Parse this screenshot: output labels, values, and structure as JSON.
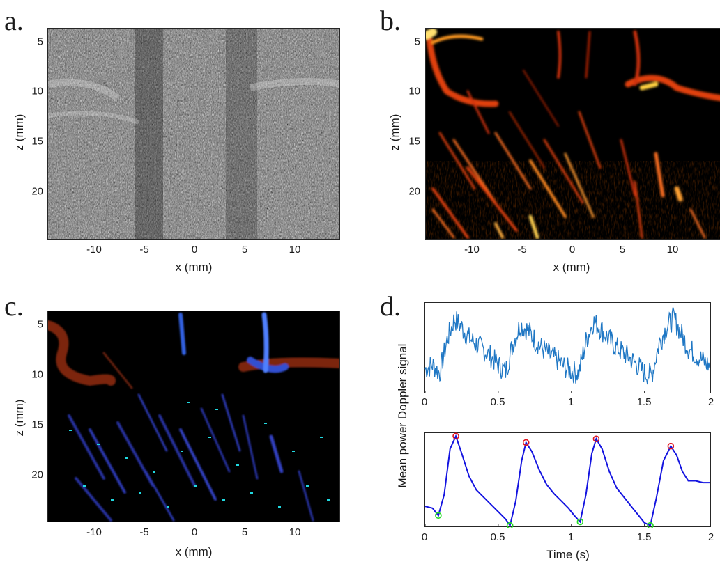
{
  "panels": {
    "a": {
      "letter": "a.",
      "xlabel": "x (mm)",
      "ylabel": "z (mm)",
      "xticks": [
        "-10",
        "-5",
        "0",
        "5",
        "10"
      ],
      "yticks": [
        "5",
        "10",
        "15",
        "20"
      ]
    },
    "b": {
      "letter": "b.",
      "xlabel": "x (mm)",
      "ylabel": "z (mm)",
      "xticks": [
        "-10",
        "-5",
        "0",
        "5",
        "10"
      ],
      "yticks": [
        "5",
        "10",
        "15",
        "20"
      ]
    },
    "c": {
      "letter": "c.",
      "xlabel": "x (mm)",
      "ylabel": "z (mm)",
      "xticks": [
        "-10",
        "-5",
        "0",
        "5",
        "10"
      ],
      "yticks": [
        "5",
        "10",
        "15",
        "20"
      ]
    },
    "d": {
      "letter": "d.",
      "ylabel": "Mean power Doppler signal",
      "xlabel": "Time (s)",
      "xticks": [
        "0",
        "0.5",
        "1",
        "1.5",
        "2"
      ]
    }
  },
  "colors": {
    "raw_signal": "#1f77c4",
    "smooth_signal": "#1414e0",
    "peak_marker": "#e0141e",
    "trough_marker": "#22dd22",
    "axis": "#262626"
  },
  "chart_data": [
    {
      "type": "line",
      "panel": "d-top",
      "xlim": [
        0,
        1.95
      ],
      "ylim": [
        0,
        1
      ],
      "series": [
        {
          "x": [
            0.0,
            0.05,
            0.1,
            0.15,
            0.2,
            0.25,
            0.3,
            0.35,
            0.4,
            0.45,
            0.5,
            0.55,
            0.6,
            0.65,
            0.7,
            0.75,
            0.8,
            0.85,
            0.9,
            0.95,
            1.0,
            1.05,
            1.1,
            1.15,
            1.2,
            1.25,
            1.3,
            1.35,
            1.4,
            1.45,
            1.5,
            1.55,
            1.6,
            1.65,
            1.7,
            1.75,
            1.8,
            1.85,
            1.9,
            1.95
          ],
          "y": [
            0.25,
            0.3,
            0.2,
            0.6,
            0.85,
            0.75,
            0.62,
            0.55,
            0.48,
            0.4,
            0.3,
            0.22,
            0.55,
            0.78,
            0.72,
            0.6,
            0.5,
            0.42,
            0.36,
            0.28,
            0.22,
            0.2,
            0.58,
            0.82,
            0.74,
            0.62,
            0.52,
            0.45,
            0.38,
            0.3,
            0.2,
            0.18,
            0.55,
            0.75,
            0.86,
            0.68,
            0.5,
            0.42,
            0.35,
            0.28
          ]
        }
      ]
    },
    {
      "type": "line",
      "panel": "d-bottom",
      "xlim": [
        0,
        1.95
      ],
      "ylim": [
        0,
        1
      ],
      "series": [
        {
          "x": [
            0.0,
            0.05,
            0.09,
            0.13,
            0.17,
            0.21,
            0.25,
            0.3,
            0.35,
            0.4,
            0.45,
            0.5,
            0.55,
            0.58,
            0.62,
            0.66,
            0.69,
            0.73,
            0.78,
            0.83,
            0.88,
            0.93,
            0.98,
            1.02,
            1.06,
            1.1,
            1.14,
            1.17,
            1.21,
            1.26,
            1.31,
            1.36,
            1.41,
            1.46,
            1.5,
            1.54,
            1.58,
            1.63,
            1.68,
            1.72,
            1.76,
            1.8,
            1.85,
            1.9,
            1.95
          ],
          "y": [
            0.22,
            0.2,
            0.12,
            0.35,
            0.85,
            0.99,
            0.8,
            0.55,
            0.4,
            0.32,
            0.24,
            0.16,
            0.08,
            0.01,
            0.28,
            0.72,
            0.92,
            0.82,
            0.62,
            0.46,
            0.36,
            0.28,
            0.2,
            0.12,
            0.05,
            0.35,
            0.8,
            0.96,
            0.85,
            0.6,
            0.42,
            0.32,
            0.22,
            0.12,
            0.04,
            0.01,
            0.3,
            0.72,
            0.88,
            0.78,
            0.6,
            0.5,
            0.5,
            0.48,
            0.48
          ]
        }
      ],
      "peaks": [
        [
          0.21,
          0.99
        ],
        [
          0.69,
          0.92
        ],
        [
          1.17,
          0.96
        ],
        [
          1.68,
          0.88
        ]
      ],
      "troughs": [
        [
          0.09,
          0.12
        ],
        [
          0.58,
          0.01
        ],
        [
          1.06,
          0.05
        ],
        [
          1.54,
          0.01
        ]
      ]
    }
  ]
}
